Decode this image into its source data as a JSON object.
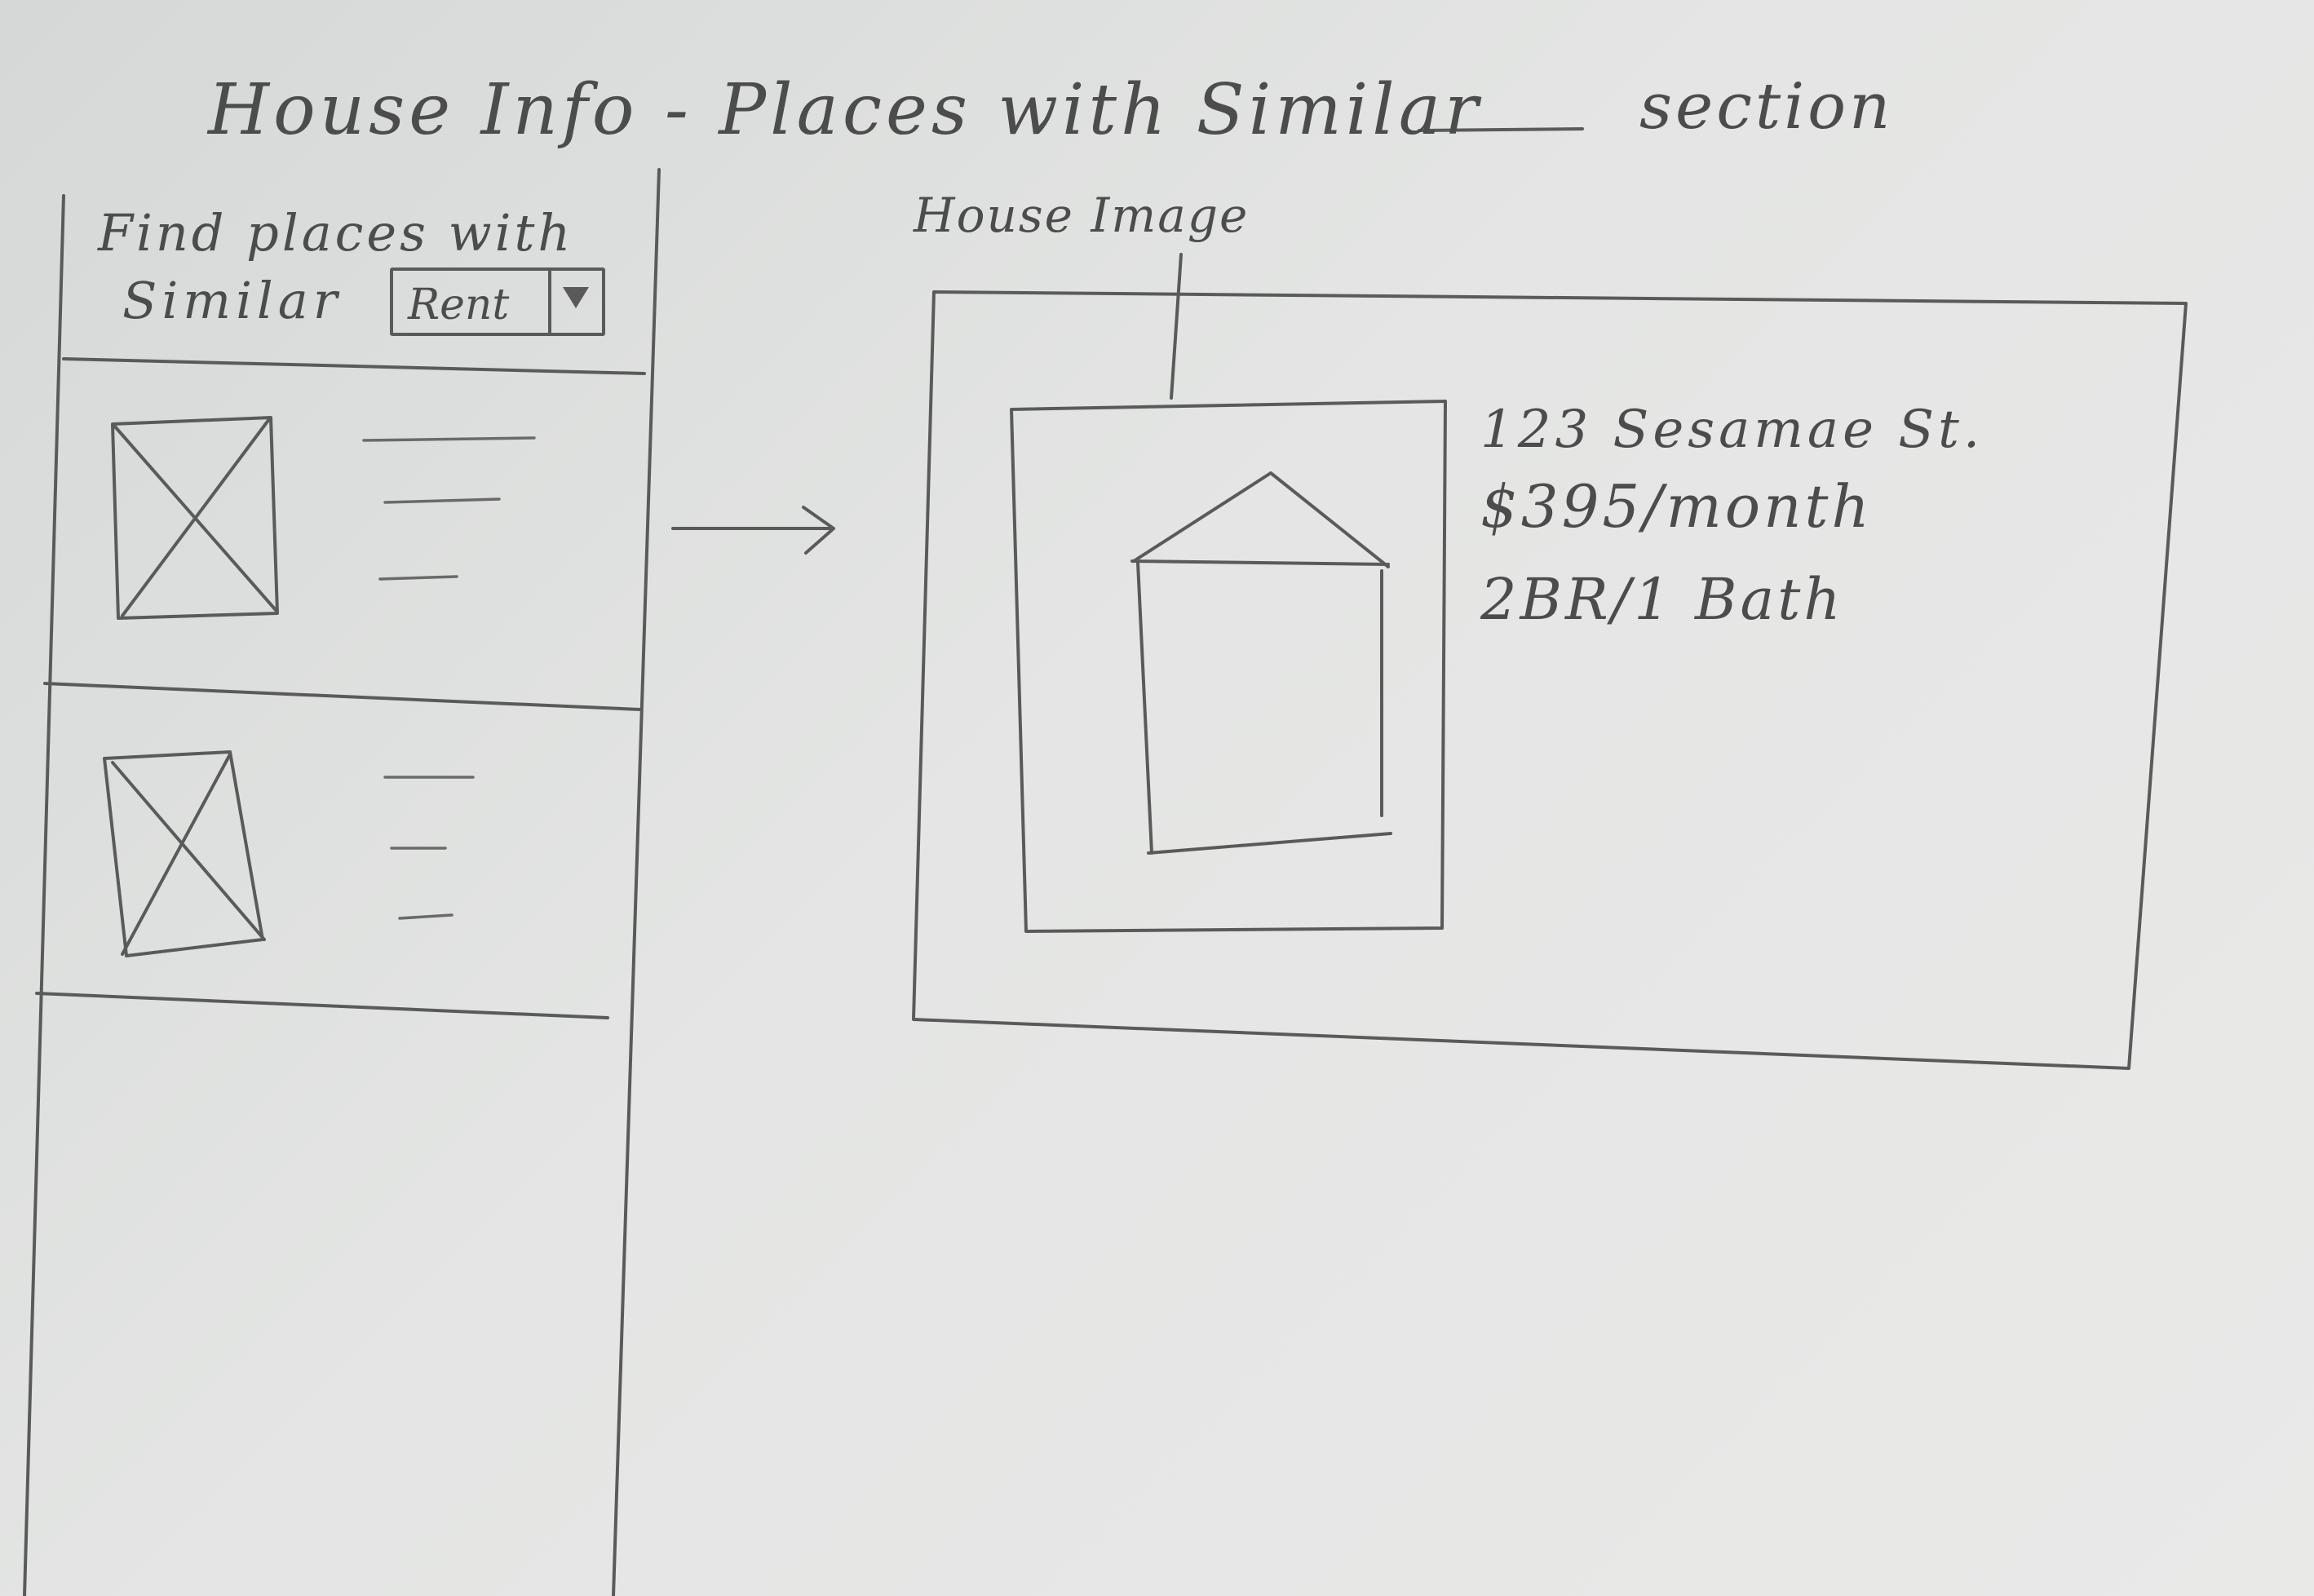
{
  "title": {
    "main": "House Info - Places with Similar",
    "suffix": "section"
  },
  "sidebar": {
    "find_text": "Find places with",
    "similar_label": "Similar",
    "dropdown_value": "Rent",
    "dropdown_icon": "chevron-down-icon",
    "list_items": [
      {
        "thumbnail_icon": "image-placeholder-icon"
      },
      {
        "thumbnail_icon": "image-placeholder-icon"
      }
    ]
  },
  "detail": {
    "image_label": "House Image",
    "image_icon": "house-icon",
    "address": "123 Sesamae St.",
    "price": "$395/month",
    "beds_baths": "2BR/1 Bath"
  }
}
